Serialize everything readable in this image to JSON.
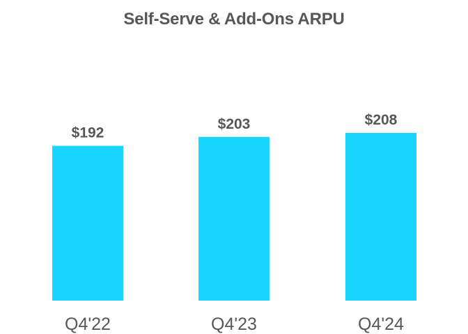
{
  "chart_data": {
    "type": "bar",
    "title": "Self-Serve & Add-Ons ARPU",
    "categories": [
      "Q4'22",
      "Q4'23",
      "Q4'24"
    ],
    "values": [
      192,
      203,
      208
    ],
    "value_labels": [
      "$192",
      "$203",
      "$208"
    ],
    "xlabel": "",
    "ylabel": "",
    "ylim": [
      0,
      208
    ],
    "grid": false,
    "legend": "none",
    "colors": {
      "bar": "#1ad5ff",
      "text": "#555759"
    }
  }
}
